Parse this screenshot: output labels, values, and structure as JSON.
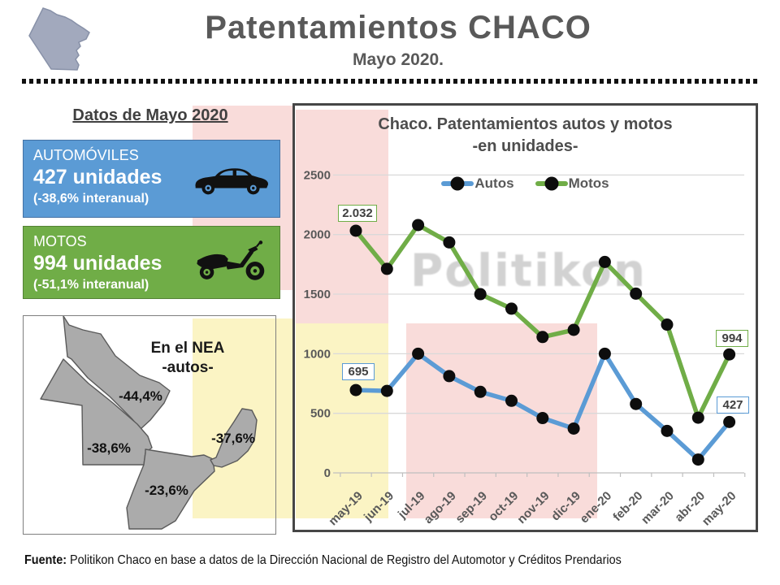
{
  "header": {
    "title": "Patentamientos CHACO",
    "subtitle": "Mayo 2020."
  },
  "sidebar": {
    "heading": "Datos de Mayo 2020",
    "autos_card": {
      "label": "AUTOMÓVILES",
      "value": "427 unidades",
      "delta": "(-38,6% interanual)"
    },
    "motos_card": {
      "label": "MOTOS",
      "value": "994 unidades",
      "delta": "(-51,1% interanual)"
    },
    "map_card": {
      "title_line1": "En el NEA",
      "title_line2": "-autos-",
      "regions": [
        {
          "value": "-44,4%"
        },
        {
          "value": "-38,6%"
        },
        {
          "value": "-23,6%"
        },
        {
          "value": "-37,6%"
        }
      ]
    }
  },
  "chart_data": {
    "type": "line",
    "title": "Chaco.  Patentamientos autos y motos",
    "subtitle": "-en unidades-",
    "categories": [
      "may-19",
      "jun-19",
      "jul-19",
      "ago-19",
      "sep-19",
      "oct-19",
      "nov-19",
      "dic-19",
      "ene-20",
      "feb-20",
      "mar-20",
      "abr-20",
      "may-20"
    ],
    "series": [
      {
        "name": "Autos",
        "color": "#5B9BD5",
        "values": [
          695,
          688,
          1000,
          812,
          680,
          605,
          460,
          372,
          1000,
          578,
          352,
          112,
          427
        ]
      },
      {
        "name": "Motos",
        "color": "#70AD47",
        "values": [
          2032,
          1712,
          2080,
          1934,
          1500,
          1378,
          1140,
          1200,
          1770,
          1504,
          1244,
          463,
          994
        ]
      }
    ],
    "ylim": [
      0,
      2500
    ],
    "yticks": [
      0,
      500,
      1000,
      1500,
      2000,
      2500
    ],
    "grid": "horizontal",
    "legend_position": "top",
    "watermark": "Politikon",
    "point_labels": [
      {
        "series": "Motos",
        "index": 0,
        "text": "2.032"
      },
      {
        "series": "Autos",
        "index": 0,
        "text": "695"
      },
      {
        "series": "Motos",
        "index": 12,
        "text": "994"
      },
      {
        "series": "Autos",
        "index": 12,
        "text": "427"
      }
    ]
  },
  "footer": {
    "source_label": "Fuente:",
    "source_text": " Politikon Chaco en base a datos de la Dirección Nacional de Registro del Automotor y Créditos Prendarios"
  },
  "colors": {
    "blue": "#5B9BD5",
    "blue_border": "#4472A4",
    "green": "#70AD47",
    "green_border": "#548235",
    "pink_band": "#F9DCDA",
    "yellow_band": "#FBF4C4",
    "gray_text": "#595959",
    "map_fill": "#ABABAB",
    "gridline": "#D9D9D9",
    "dot": "#0d0d0d"
  }
}
